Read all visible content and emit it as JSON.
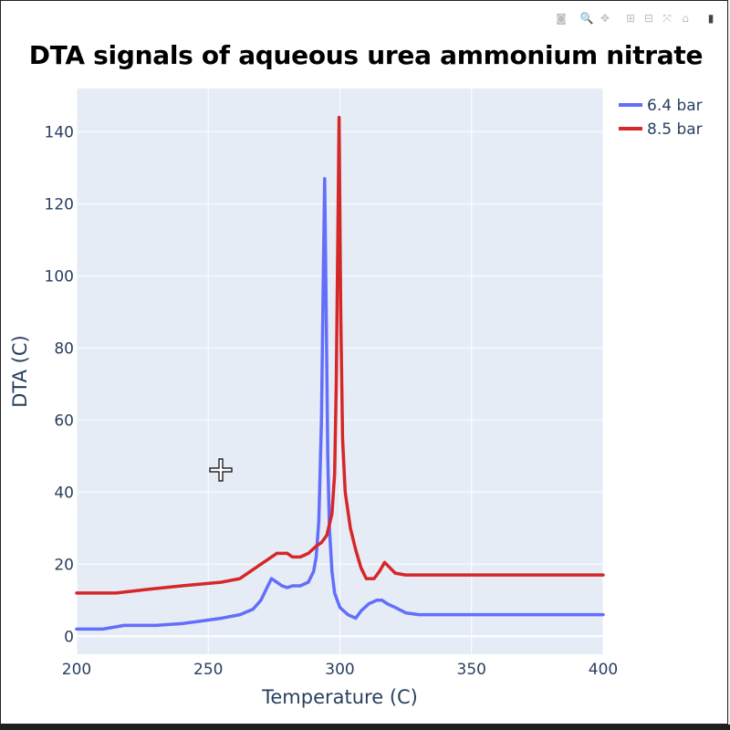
{
  "modebar": {
    "buttons": [
      {
        "name": "camera-icon",
        "glyph": "◙"
      },
      {
        "name": "zoom-icon",
        "glyph": "🔍"
      },
      {
        "name": "pan-icon",
        "glyph": "✥"
      },
      {
        "name": "zoom-in-icon",
        "glyph": "⊞"
      },
      {
        "name": "zoom-out-icon",
        "glyph": "⊟"
      },
      {
        "name": "autoscale-icon",
        "glyph": "⤧"
      },
      {
        "name": "reset-axes-icon",
        "glyph": "⌂"
      },
      {
        "name": "plotly-logo-icon",
        "glyph": "▮"
      }
    ]
  },
  "colors": {
    "plot_bg": "#e5ecf6",
    "grid": "#ffffff",
    "series_1": "#636efa",
    "series_2": "#d62728",
    "tick_text": "#2a3f5f"
  },
  "chart_data": {
    "type": "line",
    "title": "DTA signals of aqueous urea ammonium nitrate",
    "xlabel": "Temperature (C)",
    "ylabel": "DTA (C)",
    "xlim": [
      200,
      400
    ],
    "ylim": [
      -5,
      152
    ],
    "xticks": [
      200,
      250,
      300,
      350,
      400
    ],
    "yticks": [
      0,
      20,
      40,
      60,
      80,
      100,
      120,
      140
    ],
    "grid": true,
    "legend_position": "top-right",
    "series": [
      {
        "name": "6.4 bar",
        "color": "#636efa",
        "x": [
          200,
          210,
          218,
          230,
          240,
          245,
          255,
          262,
          267,
          270,
          272,
          274,
          276,
          278,
          280,
          282,
          285,
          288,
          290,
          291,
          292,
          293,
          293.7,
          294.2,
          294.8,
          295.4,
          296,
          297,
          298,
          300,
          303,
          306,
          308,
          311,
          314,
          316,
          318,
          321,
          325,
          330,
          350,
          380,
          400
        ],
        "y": [
          2,
          2,
          3,
          3,
          3.5,
          4,
          5,
          6,
          7.5,
          10,
          13,
          16,
          15,
          14,
          13.5,
          14,
          14,
          15,
          18,
          22,
          32,
          60,
          100,
          127,
          90,
          50,
          30,
          18,
          12,
          8,
          6,
          5,
          7,
          9,
          10,
          10,
          9,
          8,
          6.5,
          6,
          6,
          6,
          6
        ]
      },
      {
        "name": "8.5 bar",
        "color": "#d62728",
        "x": [
          200,
          215,
          227,
          240,
          255,
          262,
          266,
          270,
          274,
          276,
          280,
          282,
          285,
          288,
          291,
          293,
          295,
          297,
          298,
          298.6,
          299.2,
          299.7,
          300.3,
          301,
          302,
          304,
          306,
          308,
          310,
          313,
          315,
          317,
          319,
          321,
          325,
          350,
          400
        ],
        "y": [
          12,
          12,
          13,
          14,
          15,
          16,
          18,
          20,
          22,
          23,
          23,
          22,
          22,
          23,
          25,
          26,
          28,
          34,
          45,
          70,
          110,
          144,
          90,
          55,
          40,
          30,
          24,
          19,
          16,
          16,
          18,
          20.5,
          19,
          17.5,
          17,
          17,
          17
        ]
      }
    ]
  }
}
